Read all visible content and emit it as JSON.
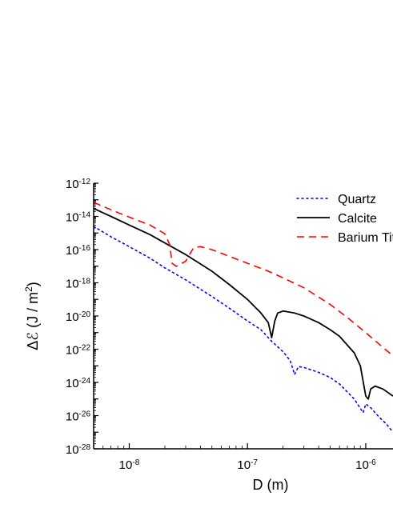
{
  "chart_data": {
    "type": "line",
    "x_scale": "log",
    "y_scale": "log",
    "xlim": [
      5e-09,
      1.7e-06
    ],
    "ylim": [
      1e-28,
      1e-12
    ],
    "xlabel": "D (m)",
    "ylabel": "ΔℰT (J / m²)",
    "ylabel_parts": {
      "main": "Δℰ (J / m",
      "sup": "2",
      "end": ")"
    },
    "x_ticks": [
      {
        "value": 1e-08,
        "base": "10",
        "exp": "-8"
      },
      {
        "value": 1e-07,
        "base": "10",
        "exp": "-7"
      },
      {
        "value": 1e-06,
        "base": "10",
        "exp": "-6"
      }
    ],
    "y_ticks": [
      {
        "value": 1e-12,
        "base": "10",
        "exp": "-12"
      },
      {
        "value": 1e-14,
        "base": "10",
        "exp": "-14"
      },
      {
        "value": 1e-16,
        "base": "10",
        "exp": "-16"
      },
      {
        "value": 1e-18,
        "base": "10",
        "exp": "-18"
      },
      {
        "value": 1e-20,
        "base": "10",
        "exp": "-20"
      },
      {
        "value": 1e-22,
        "base": "10",
        "exp": "-22"
      },
      {
        "value": 1e-24,
        "base": "10",
        "exp": "-24"
      },
      {
        "value": 1e-26,
        "base": "10",
        "exp": "-26"
      },
      {
        "value": 1e-28,
        "base": "10",
        "exp": "-28"
      }
    ],
    "legend_position": "top-right",
    "series": [
      {
        "name": "Quartz",
        "color": "#0000ff",
        "dash": "dotted",
        "points": [
          [
            5e-09,
            2.5e-15
          ],
          [
            7e-09,
            6e-16
          ],
          [
            1e-08,
            1.5e-16
          ],
          [
            1.5e-08,
            3e-17
          ],
          [
            2e-08,
            8e-18
          ],
          [
            3e-08,
            1.5e-18
          ],
          [
            5e-08,
            1.5e-19
          ],
          [
            7e-08,
            3e-20
          ],
          [
            1e-07,
            5e-21
          ],
          [
            1.3e-07,
            1.5e-21
          ],
          [
            1.6e-07,
            3e-22
          ],
          [
            2e-07,
            7e-23
          ],
          [
            2.3e-07,
            2e-23
          ],
          [
            2.5e-07,
            3e-24
          ],
          [
            2.7e-07,
            9e-24
          ],
          [
            3e-07,
            8e-24
          ],
          [
            4e-07,
            4e-24
          ],
          [
            5e-07,
            2e-24
          ],
          [
            6e-07,
            8e-25
          ],
          [
            8e-07,
            1e-25
          ],
          [
            9.5e-07,
            1.5e-26
          ],
          [
            1e-06,
            5e-26
          ],
          [
            1.1e-06,
            3e-26
          ],
          [
            1.3e-06,
            8e-27
          ],
          [
            1.5e-06,
            3e-27
          ],
          [
            1.7e-06,
            1e-27
          ]
        ]
      },
      {
        "name": "Calcite",
        "color": "#000000",
        "dash": "solid",
        "points": [
          [
            5e-09,
            3e-14
          ],
          [
            7e-09,
            1e-14
          ],
          [
            1e-08,
            3e-15
          ],
          [
            1.5e-08,
            8e-16
          ],
          [
            2e-08,
            2.5e-16
          ],
          [
            3e-08,
            5e-17
          ],
          [
            5e-08,
            5e-18
          ],
          [
            7e-08,
            8e-19
          ],
          [
            1e-07,
            1e-19
          ],
          [
            1.3e-07,
            1.5e-20
          ],
          [
            1.5e-07,
            4e-21
          ],
          [
            1.6e-07,
            5e-22
          ],
          [
            1.7e-07,
            5e-21
          ],
          [
            1.8e-07,
            1.5e-20
          ],
          [
            2e-07,
            2e-20
          ],
          [
            2.5e-07,
            1.5e-20
          ],
          [
            3e-07,
            1e-20
          ],
          [
            4e-07,
            4e-21
          ],
          [
            5e-07,
            1.5e-21
          ],
          [
            6e-07,
            6e-22
          ],
          [
            8e-07,
            6e-23
          ],
          [
            9e-07,
            1e-23
          ],
          [
            1e-06,
            1.5e-25
          ],
          [
            1.05e-06,
            1e-25
          ],
          [
            1.1e-06,
            4e-25
          ],
          [
            1.2e-06,
            6e-25
          ],
          [
            1.4e-06,
            4e-25
          ],
          [
            1.7e-06,
            1.5e-25
          ]
        ]
      },
      {
        "name": "Barium Titanate",
        "color": "#ff0000",
        "dash": "dashed",
        "points": [
          [
            5e-09,
            7e-14
          ],
          [
            7e-09,
            2.5e-14
          ],
          [
            1e-08,
            9e-15
          ],
          [
            1.5e-08,
            3e-15
          ],
          [
            2e-08,
            9e-16
          ],
          [
            2.2e-08,
            2e-16
          ],
          [
            2.3e-08,
            1.5e-17
          ],
          [
            2.5e-08,
            1e-17
          ],
          [
            3e-08,
            2e-17
          ],
          [
            3.5e-08,
            1.3e-16
          ],
          [
            4e-08,
            1.5e-16
          ],
          [
            5e-08,
            1e-16
          ],
          [
            7e-08,
            4e-17
          ],
          [
            1e-07,
            1.5e-17
          ],
          [
            1.5e-07,
            5e-18
          ],
          [
            2e-07,
            2e-18
          ],
          [
            3e-07,
            5e-19
          ],
          [
            5e-07,
            5e-20
          ],
          [
            7e-07,
            8e-21
          ],
          [
            1e-06,
            1e-21
          ],
          [
            1.3e-06,
            2e-22
          ],
          [
            1.7e-06,
            4e-23
          ]
        ]
      }
    ]
  }
}
